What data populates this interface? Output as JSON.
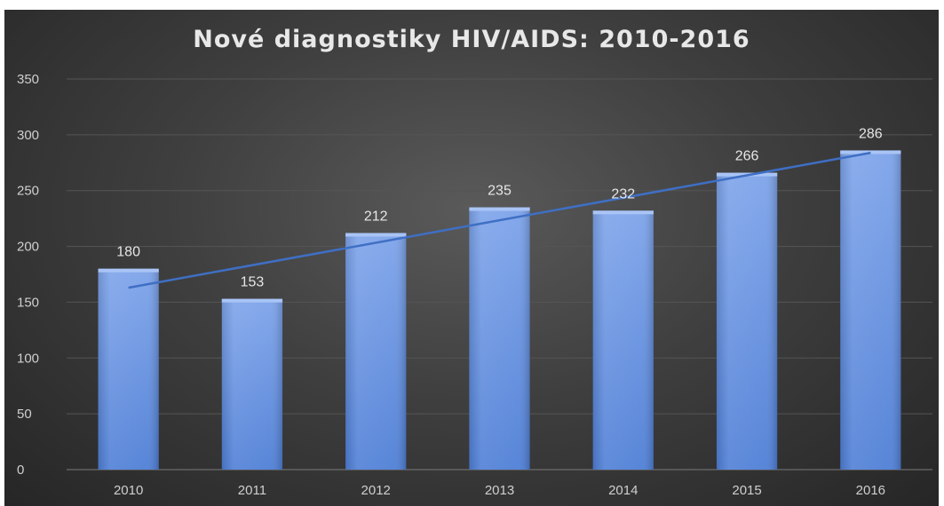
{
  "chart_data": {
    "type": "bar",
    "title": "Nové diagnostiky HIV/AIDS: 2010-2016",
    "xlabel": "",
    "ylabel": "",
    "categories": [
      "2010",
      "2011",
      "2012",
      "2013",
      "2014",
      "2015",
      "2016"
    ],
    "values": [
      180,
      153,
      212,
      235,
      232,
      266,
      286
    ],
    "ylim": [
      0,
      350
    ],
    "yticks": [
      0,
      50,
      100,
      150,
      200,
      250,
      300,
      350
    ],
    "grid": true,
    "legend": "none",
    "trendline": "linear",
    "colors": {
      "bar": "#4f7fd6",
      "bar_light": "#7ea4ea",
      "trendline": "#3f6fc4",
      "background": "#3f3f3f",
      "gridline": "#555555",
      "text": "#d9d9d9"
    }
  }
}
